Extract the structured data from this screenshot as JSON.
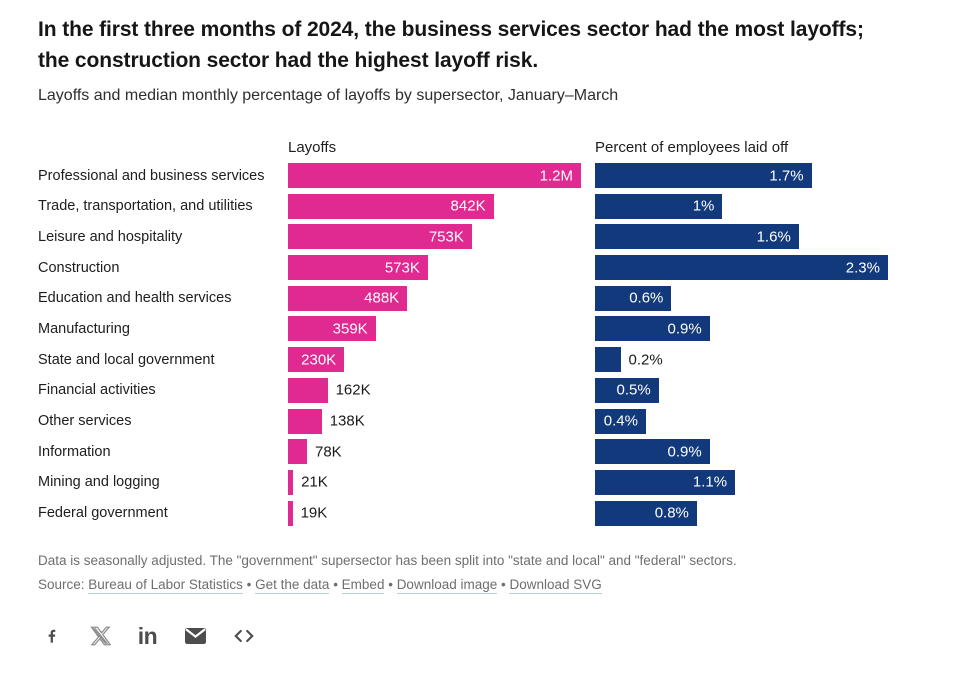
{
  "header": {
    "title": "In the first three months of 2024, the business services sector had the most layoffs; the construction sector had the highest layoff risk.",
    "subtitle": "Layoffs and median monthly percentage of layoffs by supersector, January–March"
  },
  "chart_data": [
    {
      "type": "bar",
      "title": "Layoffs",
      "categories": [
        "Professional and business services",
        "Trade, transportation, and utilities",
        "Leisure and hospitality",
        "Construction",
        "Education and health services",
        "Manufacturing",
        "State and local government",
        "Financial activities",
        "Other services",
        "Information",
        "Mining and logging",
        "Federal government"
      ],
      "values": [
        1200,
        842,
        753,
        573,
        488,
        359,
        230,
        162,
        138,
        78,
        21,
        19
      ],
      "value_labels": [
        "1.2M",
        "842K",
        "753K",
        "573K",
        "488K",
        "359K",
        "230K",
        "162K",
        "138K",
        "78K",
        "21K",
        "19K"
      ],
      "unit": "thousands of layoffs",
      "xlim": [
        0,
        1200
      ],
      "bar_color": "#e02a91",
      "grid": false,
      "legend_position": "none"
    },
    {
      "type": "bar",
      "title": "Percent of employees laid off",
      "categories": [
        "Professional and business services",
        "Trade, transportation, and utilities",
        "Leisure and hospitality",
        "Construction",
        "Education and health services",
        "Manufacturing",
        "State and local government",
        "Financial activities",
        "Other services",
        "Information",
        "Mining and logging",
        "Federal government"
      ],
      "values": [
        1.7,
        1.0,
        1.6,
        2.3,
        0.6,
        0.9,
        0.2,
        0.5,
        0.4,
        0.9,
        1.1,
        0.8
      ],
      "value_labels": [
        "1.7%",
        "1%",
        "1.6%",
        "2.3%",
        "0.6%",
        "0.9%",
        "0.2%",
        "0.5%",
        "0.4%",
        "0.9%",
        "1.1%",
        "0.8%"
      ],
      "unit": "percent",
      "xlim": [
        0,
        2.3
      ],
      "bar_color": "#11397b",
      "grid": false,
      "legend_position": "none"
    }
  ],
  "footer": {
    "note": "Data is seasonally adjusted. The \"government\" supersector has been split into \"state and local\" and \"federal\" sectors.",
    "source_prefix": "Source:",
    "links": [
      "Bureau of Labor Statistics",
      "Get the data",
      "Embed",
      "Download image",
      "Download SVG"
    ],
    "separator": "•"
  },
  "social": {
    "icons": [
      "facebook-icon",
      "x-icon",
      "linkedin-icon",
      "email-icon",
      "embed-code-icon"
    ],
    "icon_color": "#4d4d4d",
    "x_icon_color": "#8f8f8f"
  }
}
